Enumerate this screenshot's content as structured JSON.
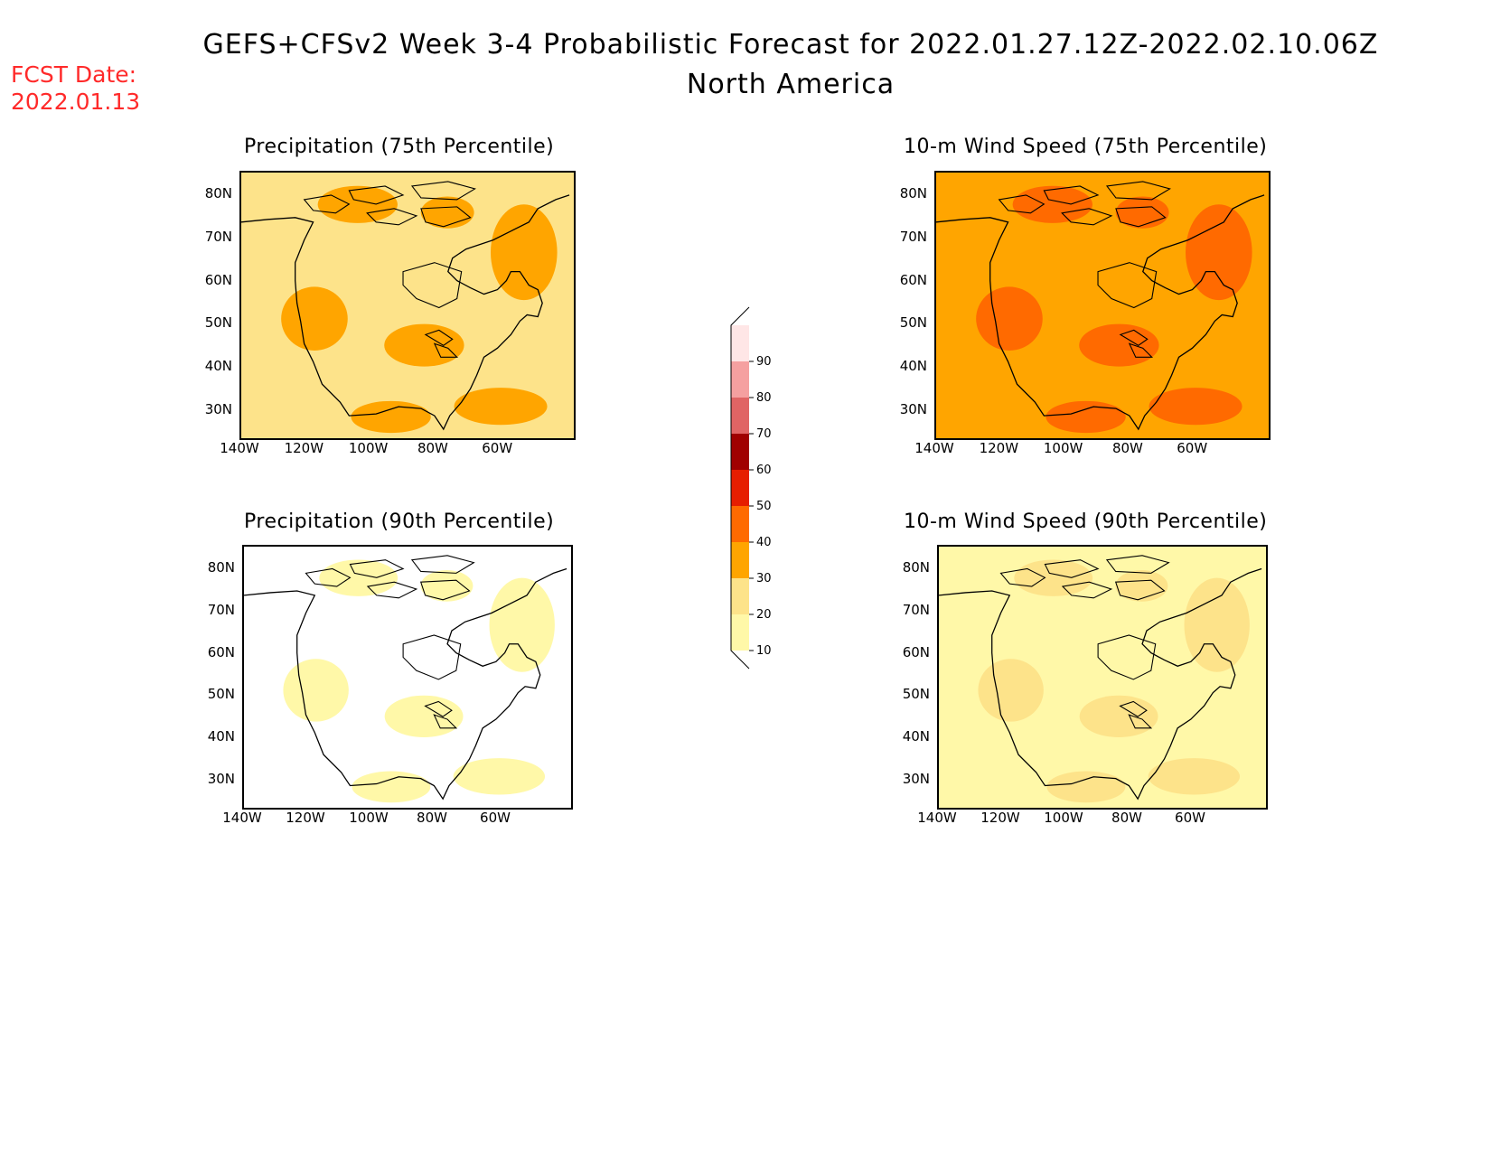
{
  "header": {
    "title": "GEFS+CFSv2 Week 3-4 Probabilistic Forecast for 2022.01.27.12Z-2022.02.10.06Z",
    "subtitle": "North America",
    "fcst_label": "FCST Date:",
    "fcst_value": "2022.01.13"
  },
  "panels": [
    {
      "id": "precip75",
      "title": "Precipitation (75th Percentile)",
      "base_color": "#fde38a",
      "accent": "#ffa500"
    },
    {
      "id": "wind75",
      "title": "10-m Wind Speed (75th Percentile)",
      "base_color": "#ffa500",
      "accent": "#ff6a00"
    },
    {
      "id": "precip90",
      "title": "Precipitation (90th Percentile)",
      "base_color": "#ffffff",
      "accent": "#fff8a8"
    },
    {
      "id": "wind90",
      "title": "10-m Wind Speed (90th Percentile)",
      "base_color": "#fff8a8",
      "accent": "#fde38a"
    }
  ],
  "lat_ticks": [
    "80N",
    "70N",
    "60N",
    "50N",
    "40N",
    "30N"
  ],
  "lon_ticks": [
    "140W",
    "120W",
    "100W",
    "80W",
    "60W"
  ],
  "colorbar": {
    "levels": [
      "10",
      "20",
      "30",
      "40",
      "50",
      "60",
      "70",
      "80",
      "90"
    ],
    "colors": [
      "#fff8a8",
      "#fde38a",
      "#ffa500",
      "#ff6a00",
      "#e61e00",
      "#a00000",
      "#e06464",
      "#f5a0a0",
      "#ffe6e6"
    ]
  }
}
